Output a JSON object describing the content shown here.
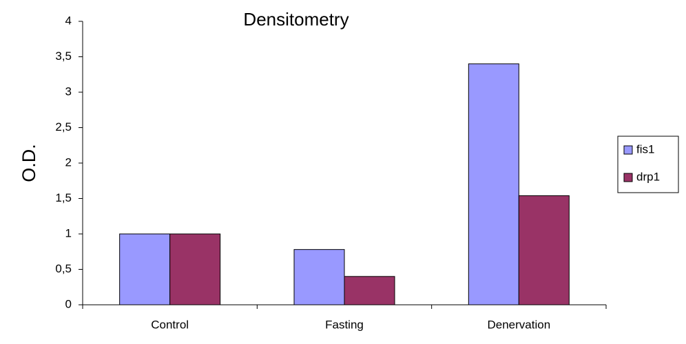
{
  "chart_data": {
    "type": "bar",
    "title": "Densitometry",
    "y_label": "O.D.",
    "categories": [
      "Control",
      "Fasting",
      "Denervation"
    ],
    "series": [
      {
        "name": "fis1",
        "color": "#9999ff",
        "values": [
          1,
          0.78,
          3.4
        ]
      },
      {
        "name": "drp1",
        "color": "#993366",
        "values": [
          1,
          0.4,
          1.54
        ]
      }
    ],
    "ylim": [
      0,
      4
    ],
    "yticks": [
      0,
      {
        "value": 0.5,
        "label": "0,5"
      },
      1,
      {
        "value": 1.5,
        "label": "1,5"
      },
      2,
      {
        "value": 2.5,
        "label": "2,5"
      },
      3,
      {
        "value": 3.5,
        "label": "3,5"
      },
      4
    ],
    "grid": false,
    "legend": "right"
  }
}
